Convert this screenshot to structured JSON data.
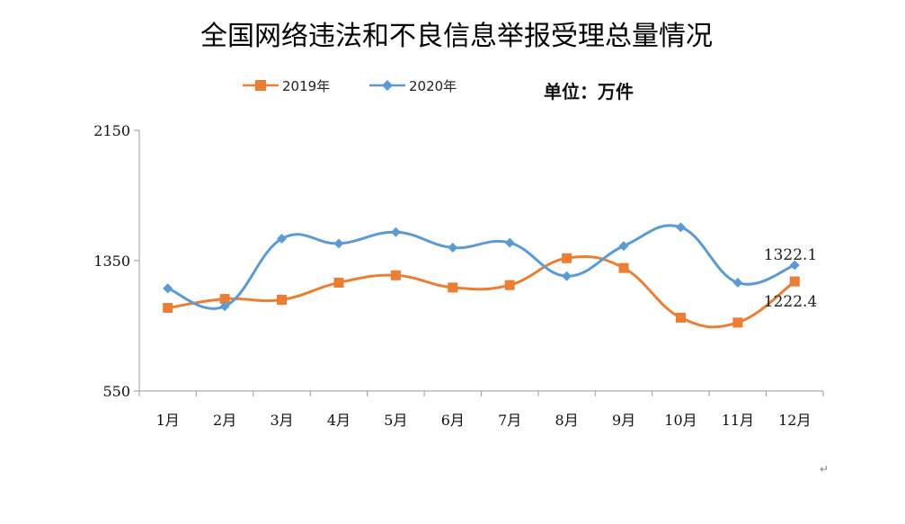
{
  "chart_data": {
    "type": "line",
    "title": "全国网络违法和不良信息举报受理总量情况",
    "unit_label": "单位：万件",
    "categories": [
      "1月",
      "2月",
      "3月",
      "4月",
      "5月",
      "6月",
      "7月",
      "8月",
      "9月",
      "10月",
      "11月",
      "12月"
    ],
    "ylim": [
      550,
      2150
    ],
    "yticks": [
      550,
      1350,
      2150
    ],
    "ytick_labels": [
      "550",
      "1350",
      "2150"
    ],
    "grid": false,
    "legend_position": "top",
    "smooth": true,
    "series": [
      {
        "name": "2019年",
        "color": "#ED7D31",
        "marker": "square",
        "values": [
          1060,
          1115,
          1110,
          1215,
          1260,
          1185,
          1200,
          1365,
          1305,
          1000,
          970,
          1222.4
        ]
      },
      {
        "name": "2020年",
        "color": "#5B9BD5",
        "marker": "diamond",
        "values": [
          1180,
          1070,
          1485,
          1455,
          1525,
          1430,
          1460,
          1255,
          1440,
          1555,
          1215,
          1322.1
        ]
      }
    ],
    "annotations": [
      {
        "series": 1,
        "index": 11,
        "text": "1322.1"
      },
      {
        "series": 0,
        "index": 11,
        "text": "1222.4"
      }
    ]
  },
  "trailing_mark": "↵"
}
